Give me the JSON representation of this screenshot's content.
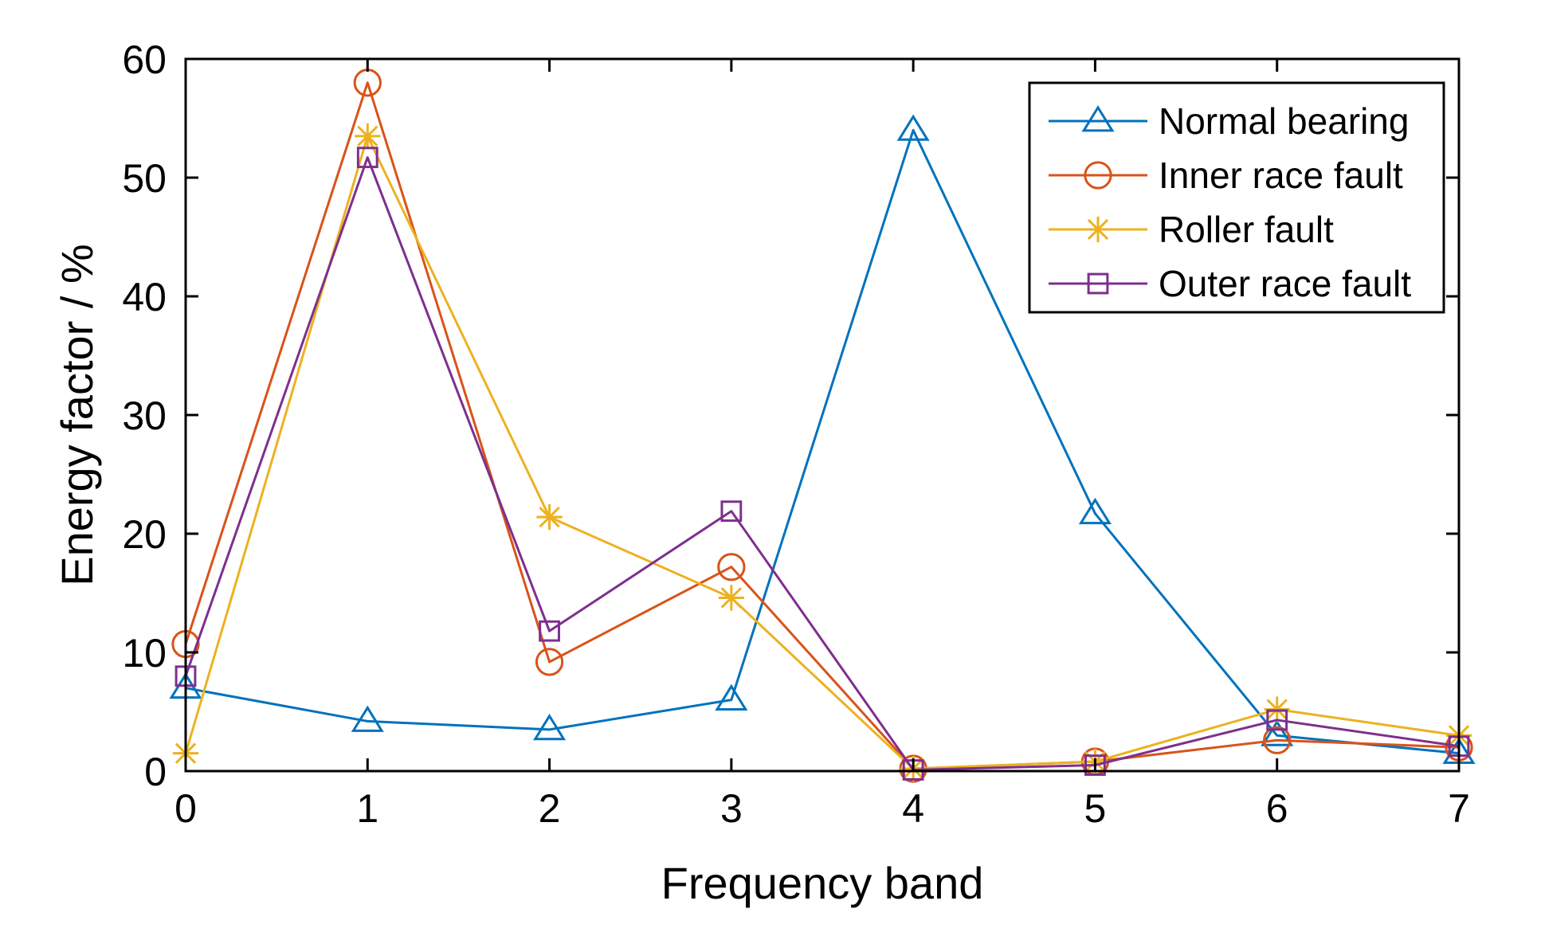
{
  "chart_data": {
    "type": "line",
    "xlabel": "Frequency band",
    "ylabel": "Energy factor / %",
    "xlim": [
      0,
      7
    ],
    "ylim": [
      0,
      60
    ],
    "xticks": [
      0,
      1,
      2,
      3,
      4,
      5,
      6,
      7
    ],
    "yticks": [
      0,
      10,
      20,
      30,
      40,
      50,
      60
    ],
    "x": [
      0,
      1,
      2,
      3,
      4,
      5,
      6,
      7
    ],
    "grid": false,
    "legend_position": "top-right",
    "series": [
      {
        "name": "Normal bearing",
        "color": "#0072BD",
        "marker": "triangle",
        "values": [
          7.0,
          4.2,
          3.5,
          6.0,
          54.0,
          21.7,
          3.0,
          1.5
        ]
      },
      {
        "name": "Inner race fault",
        "color": "#D95319",
        "marker": "circle",
        "values": [
          10.7,
          58.0,
          9.2,
          17.2,
          0.2,
          0.8,
          2.6,
          2.0
        ]
      },
      {
        "name": "Roller fault",
        "color": "#EDB120",
        "marker": "asterisk",
        "values": [
          1.5,
          53.5,
          21.4,
          14.6,
          0.2,
          0.8,
          5.2,
          3.0
        ]
      },
      {
        "name": "Outer race fault",
        "color": "#7E2F8E",
        "marker": "square",
        "values": [
          8.0,
          51.7,
          11.8,
          21.9,
          0.1,
          0.5,
          4.3,
          2.1
        ]
      }
    ]
  }
}
